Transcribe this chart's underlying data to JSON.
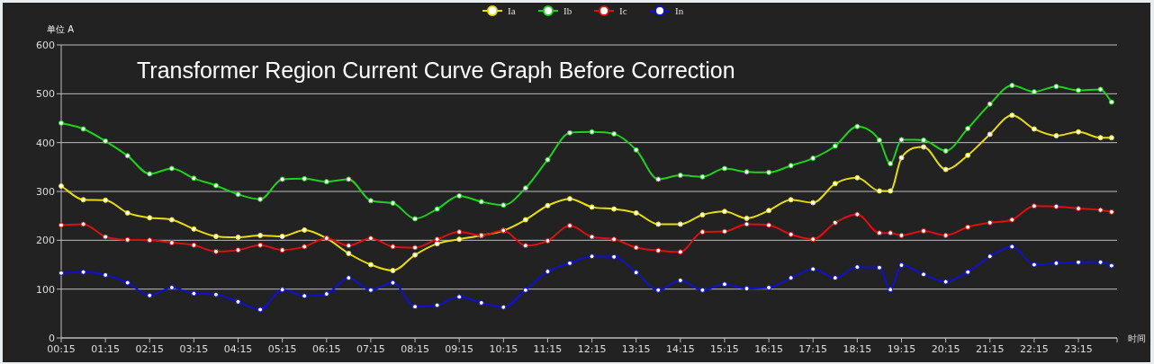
{
  "chart_data": {
    "type": "line",
    "title": "Transformer Region Current Curve Graph Before Correction",
    "ylabel": "单位 A",
    "xlabel": "时间",
    "x": [
      0.25,
      0.75,
      1.25,
      1.75,
      2.25,
      2.75,
      3.25,
      3.75,
      4.25,
      4.75,
      5.25,
      5.75,
      6.25,
      6.75,
      7.25,
      7.75,
      8.25,
      8.75,
      9.25,
      9.75,
      10.25,
      10.75,
      11.25,
      11.75,
      12.25,
      12.75,
      13.25,
      13.75,
      14.25,
      14.75,
      15.25,
      15.75,
      16.25,
      16.75,
      17.25,
      17.75,
      18.25,
      18.75,
      19.0,
      19.25,
      19.75,
      20.25,
      20.75,
      21.25,
      21.75,
      22.25,
      22.75,
      23.25,
      23.75,
      24.0
    ],
    "series": [
      {
        "name": "Ia",
        "color": "#e6dc10",
        "values": [
          311,
          283,
          282,
          256,
          246,
          242,
          223,
          208,
          206,
          210,
          208,
          221,
          204,
          173,
          150,
          138,
          170,
          193,
          202,
          210,
          220,
          242,
          271,
          285,
          268,
          264,
          256,
          233,
          233,
          252,
          259,
          245,
          261,
          283,
          277,
          316,
          328,
          301,
          301,
          369,
          391,
          345,
          374,
          417,
          456,
          428,
          414,
          422,
          410,
          410
        ]
      },
      {
        "name": "Ib",
        "color": "#1ed21e",
        "values": [
          440,
          428,
          403,
          373,
          336,
          347,
          327,
          312,
          294,
          284,
          325,
          326,
          320,
          325,
          281,
          276,
          244,
          264,
          291,
          279,
          272,
          307,
          365,
          420,
          422,
          418,
          385,
          325,
          333,
          330,
          347,
          340,
          339,
          353,
          368,
          393,
          433,
          405,
          357,
          406,
          405,
          383,
          429,
          479,
          517,
          504,
          515,
          507,
          509,
          483
        ]
      },
      {
        "name": "Ic",
        "color": "#dc1010",
        "values": [
          231,
          233,
          207,
          201,
          200,
          195,
          190,
          177,
          180,
          190,
          180,
          187,
          204,
          189,
          204,
          187,
          185,
          202,
          217,
          210,
          220,
          189,
          199,
          230,
          207,
          202,
          185,
          179,
          176,
          217,
          218,
          233,
          231,
          212,
          202,
          236,
          253,
          215,
          215,
          210,
          219,
          210,
          227,
          236,
          242,
          270,
          269,
          265,
          262,
          258
        ]
      },
      {
        "name": "In",
        "color": "#1010d0",
        "values": [
          133,
          135,
          129,
          113,
          87,
          103,
          91,
          89,
          74,
          58,
          99,
          86,
          90,
          123,
          98,
          113,
          64,
          67,
          84,
          72,
          63,
          98,
          136,
          153,
          167,
          166,
          134,
          98,
          118,
          98,
          110,
          101,
          103,
          123,
          141,
          123,
          145,
          144,
          99,
          149,
          130,
          115,
          135,
          167,
          187,
          150,
          153,
          155,
          155,
          148
        ]
      }
    ],
    "xlim": [
      0.25,
      24.125
    ],
    "xticks": [
      {
        "value": 0.25,
        "label": "00:15"
      },
      {
        "value": 1.25,
        "label": "01:15"
      },
      {
        "value": 2.25,
        "label": "02:15"
      },
      {
        "value": 3.25,
        "label": "03:15"
      },
      {
        "value": 4.25,
        "label": "04:15"
      },
      {
        "value": 5.25,
        "label": "05:15"
      },
      {
        "value": 6.25,
        "label": "06:15"
      },
      {
        "value": 7.25,
        "label": "07:15"
      },
      {
        "value": 8.25,
        "label": "08:15"
      },
      {
        "value": 9.25,
        "label": "09:15"
      },
      {
        "value": 10.25,
        "label": "10:15"
      },
      {
        "value": 11.25,
        "label": "11:15"
      },
      {
        "value": 12.25,
        "label": "12:15"
      },
      {
        "value": 13.25,
        "label": "13:15"
      },
      {
        "value": 14.25,
        "label": "14:15"
      },
      {
        "value": 15.25,
        "label": "15:15"
      },
      {
        "value": 16.25,
        "label": "16:15"
      },
      {
        "value": 17.25,
        "label": "17:15"
      },
      {
        "value": 18.25,
        "label": "18:15"
      },
      {
        "value": 19.25,
        "label": "19:15"
      },
      {
        "value": 20.25,
        "label": "20:15"
      },
      {
        "value": 21.25,
        "label": "21:15"
      },
      {
        "value": 22.25,
        "label": "22:15"
      },
      {
        "value": 23.25,
        "label": "23:15"
      }
    ],
    "ylim": [
      0,
      600
    ],
    "yticks": [
      0,
      100,
      200,
      300,
      400,
      500,
      600
    ],
    "grid": "y",
    "legend": "top",
    "marker": "circle",
    "line_style": "solid"
  }
}
